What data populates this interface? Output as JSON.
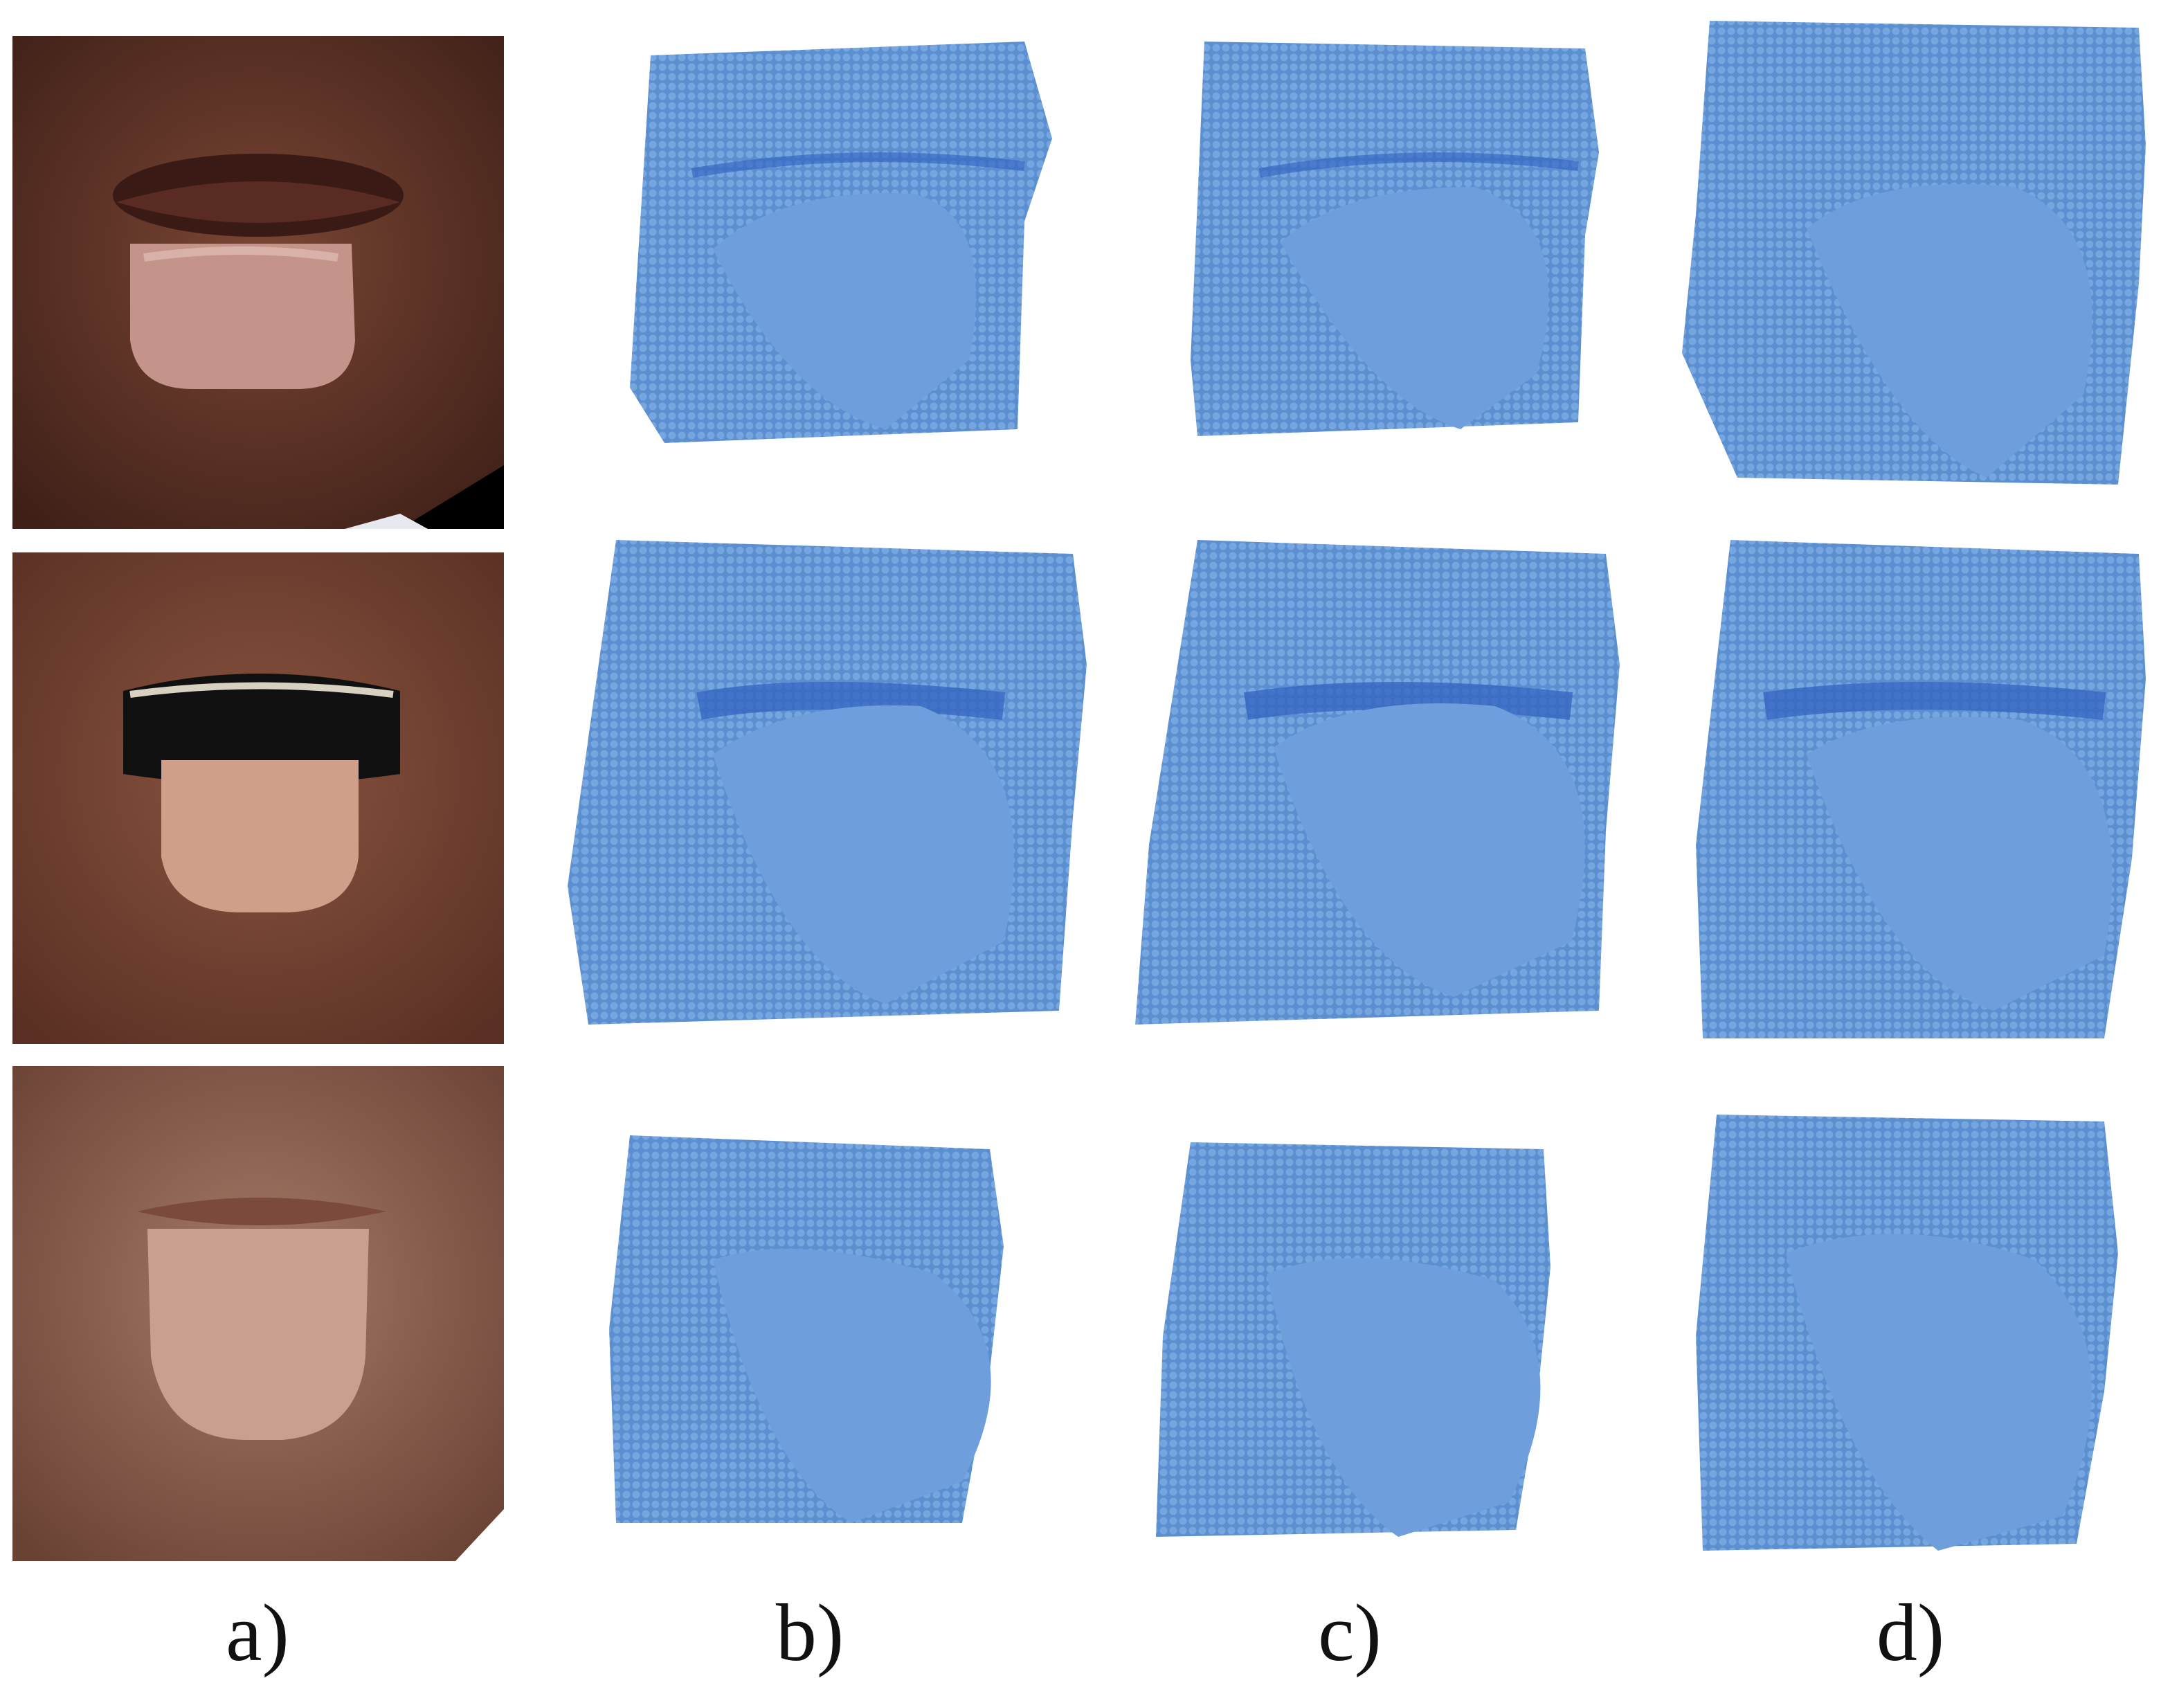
{
  "figure": {
    "columns": [
      {
        "id": "a",
        "label": "a)"
      },
      {
        "id": "b",
        "label": "b)"
      },
      {
        "id": "c",
        "label": "c)"
      },
      {
        "id": "d",
        "label": "d)"
      }
    ],
    "rows": 3,
    "panel_types": {
      "a": "photo-face-tongue",
      "b": "point-cloud",
      "c": "point-cloud",
      "d": "point-cloud"
    },
    "colors": {
      "point_cloud": "#5b8fd0",
      "point_cloud_shadow": "#2f5fbf",
      "skin_row1": "#6b3b2c",
      "skin_row2": "#7a4636",
      "skin_row3": "#8a6050",
      "tongue": "#c89a8a",
      "background": "#ffffff"
    }
  }
}
